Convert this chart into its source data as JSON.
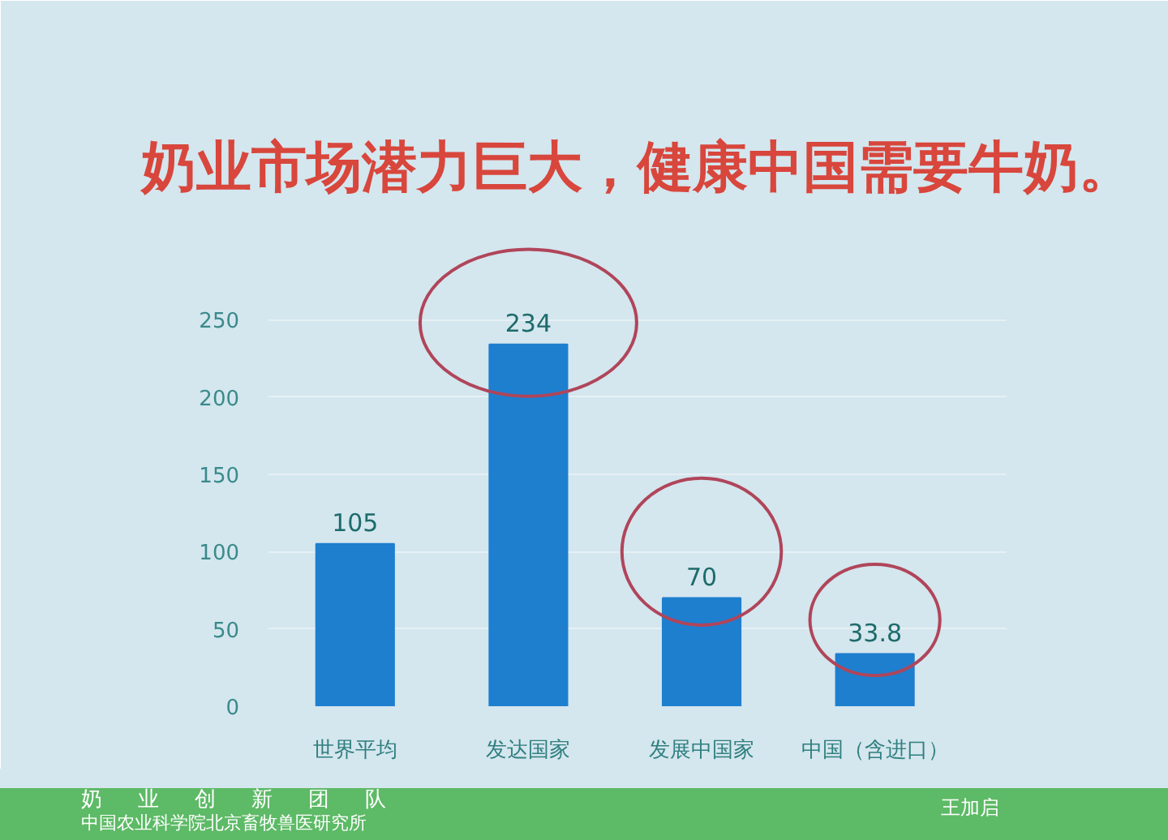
{
  "chart_data": {
    "type": "bar",
    "title": "奶业市场潜力巨大，健康中国需要牛奶。",
    "categories": [
      "世界平均",
      "发达国家",
      "发展中国家",
      "中国（含进口）"
    ],
    "values": [
      105,
      234,
      70,
      33.8
    ],
    "color": "#1e7fcf",
    "ylim": [
      0,
      300
    ],
    "yticks": [
      0,
      50,
      100,
      150,
      200,
      250
    ],
    "grid": "y",
    "data_labels": true,
    "annotations": [
      "奶业创新团队",
      "中国农业科学院北京畜牧兽医研究所",
      "王加启"
    ]
  }
}
